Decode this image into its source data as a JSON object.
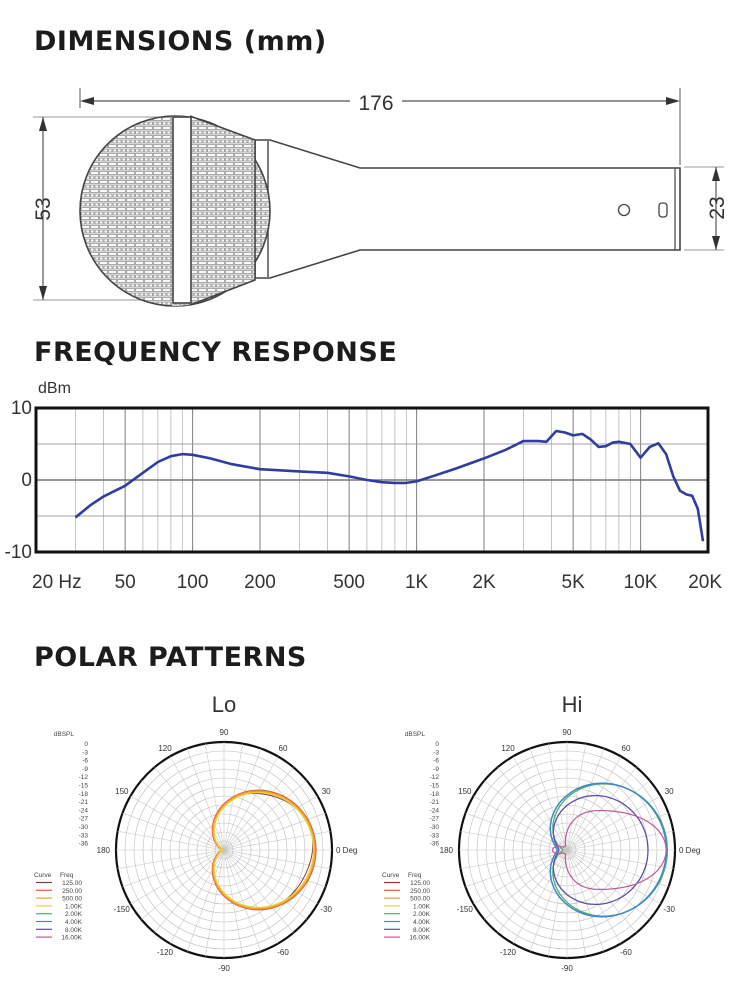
{
  "dimensions": {
    "title": "DIMENSIONS (mm)",
    "length": "176",
    "head_diameter": "53",
    "handle_diameter": "23"
  },
  "frequency": {
    "title": "FREQUENCY RESPONSE",
    "y_unit": "dBm",
    "y_ticks": [
      "10",
      "0",
      "-10"
    ],
    "x_ticks": [
      "20 Hz",
      "50",
      "100",
      "200",
      "500",
      "1K",
      "2K",
      "5K",
      "10K",
      "20K"
    ],
    "line_color": "#2f3da0",
    "chart_data": {
      "type": "line",
      "xlabel": "",
      "ylabel": "dBm",
      "x_scale": "log",
      "xlim": [
        20,
        20000
      ],
      "ylim": [
        -10,
        10
      ],
      "grid": true,
      "series": [
        {
          "x": [
            30,
            35,
            40,
            50,
            60,
            70,
            80,
            90,
            100,
            120,
            150,
            200,
            300,
            400,
            500,
            600,
            700,
            800,
            900,
            1000,
            1200,
            1500,
            2000,
            2500,
            3000,
            3500,
            3800,
            4200,
            4600,
            5000,
            5500,
            6000,
            6500,
            7000,
            7500,
            8000,
            9000,
            10000,
            11000,
            12000,
            13000,
            14000,
            15000,
            16000,
            17000,
            18000,
            19000
          ],
          "y": [
            -5.2,
            -3.5,
            -2.3,
            -0.8,
            1.0,
            2.5,
            3.3,
            3.6,
            3.5,
            3.0,
            2.2,
            1.5,
            1.2,
            1.0,
            0.5,
            0.0,
            -0.3,
            -0.4,
            -0.4,
            -0.2,
            0.6,
            1.6,
            3.0,
            4.2,
            5.4,
            5.4,
            5.3,
            6.8,
            6.6,
            6.2,
            6.4,
            5.6,
            4.6,
            4.7,
            5.2,
            5.3,
            5.0,
            3.1,
            4.6,
            5.1,
            3.6,
            0.5,
            -1.5,
            -2.0,
            -2.2,
            -4.0,
            -8.5
          ]
        }
      ]
    }
  },
  "polar": {
    "title": "POLAR PATTERNS",
    "angle_labels": [
      "90",
      "60",
      "30",
      "0 Deg",
      "-30",
      "-60",
      "-90",
      "-120",
      "-150",
      "180",
      "150",
      "120"
    ],
    "scale_title": "dBSPL",
    "scale_values": [
      "0",
      "-3",
      "-6",
      "-9",
      "-12",
      "-15",
      "-18",
      "-21",
      "-24",
      "-27",
      "-30",
      "-33",
      "-36"
    ],
    "legend_headers": [
      "Curve",
      "Freq"
    ],
    "legend": [
      {
        "freq": "125.00",
        "color": "#8b3a3a"
      },
      {
        "freq": "250.00",
        "color": "#e0603a"
      },
      {
        "freq": "500.00",
        "color": "#f0a030"
      },
      {
        "freq": "1.00K",
        "color": "#e8d23a"
      },
      {
        "freq": "2.00K",
        "color": "#5aa96a"
      },
      {
        "freq": "4.00K",
        "color": "#3a8ac8"
      },
      {
        "freq": "8.00K",
        "color": "#5a4ea8"
      },
      {
        "freq": "16.00K",
        "color": "#c05a9a"
      }
    ],
    "lo": {
      "label": "Lo"
    },
    "hi": {
      "label": "Hi"
    }
  }
}
